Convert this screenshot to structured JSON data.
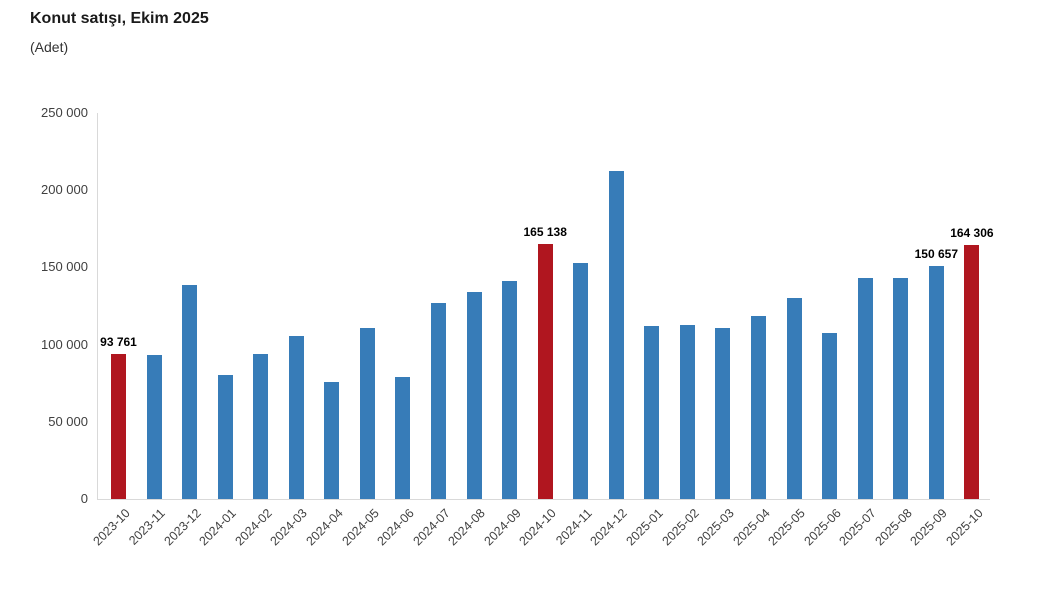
{
  "chart_data": {
    "type": "bar",
    "title": "Konut satışı, Ekim 2025",
    "subtitle": "(Adet)",
    "xlabel": "",
    "ylabel": "Adet",
    "categories": [
      "2023-10",
      "2023-11",
      "2023-12",
      "2024-01",
      "2024-02",
      "2024-03",
      "2024-04",
      "2024-05",
      "2024-06",
      "2024-07",
      "2024-08",
      "2024-09",
      "2024-10",
      "2024-11",
      "2024-12",
      "2025-01",
      "2025-02",
      "2025-03",
      "2025-04",
      "2025-05",
      "2025-06",
      "2025-07",
      "2025-08",
      "2025-09",
      "2025-10"
    ],
    "values": [
      93761,
      93014,
      138577,
      80308,
      93902,
      105476,
      75569,
      110588,
      79313,
      127088,
      134155,
      140919,
      165138,
      153014,
      212637,
      112173,
      112818,
      110795,
      118359,
      130025,
      107723,
      142858,
      143319,
      150657,
      164306
    ],
    "highlighted_indices": [
      0,
      12,
      24
    ],
    "bar_labels": [
      {
        "index": 0,
        "text": "93 761"
      },
      {
        "index": 12,
        "text": "165 138"
      },
      {
        "index": 23,
        "text": "150 657"
      },
      {
        "index": 24,
        "text": "164 306"
      }
    ],
    "ylim": [
      0,
      250000
    ],
    "ytick_values": [
      0,
      50000,
      100000,
      150000,
      200000,
      250000
    ],
    "ytick_labels": [
      "0",
      "50 000",
      "100 000",
      "150 000",
      "200 000",
      "250 000"
    ],
    "x_tick_rotation": -45,
    "grid": false,
    "legend": "none",
    "colors": {
      "bar": "#377CB8",
      "highlight": "#B0161F",
      "axis_line": "#D9D9D9",
      "tick_text": "#404040",
      "title_text": "#1A1A1A",
      "value_label_text": "#000000"
    }
  }
}
